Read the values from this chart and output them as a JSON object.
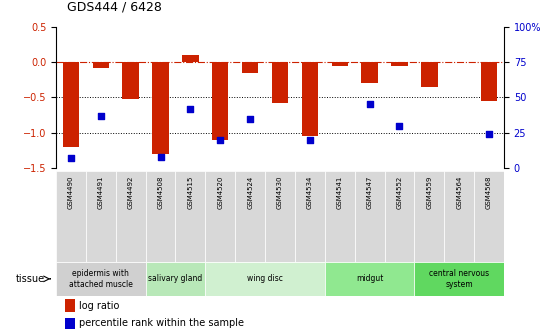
{
  "title": "GDS444 / 6428",
  "samples": [
    "GSM4490",
    "GSM4491",
    "GSM4492",
    "GSM4508",
    "GSM4515",
    "GSM4520",
    "GSM4524",
    "GSM4530",
    "GSM4534",
    "GSM4541",
    "GSM4547",
    "GSM4552",
    "GSM4559",
    "GSM4564",
    "GSM4568"
  ],
  "log_ratio": [
    -1.2,
    -0.08,
    -0.52,
    -1.3,
    0.1,
    -1.1,
    -0.15,
    -0.58,
    -1.05,
    -0.05,
    -0.3,
    -0.05,
    -0.35,
    0.0,
    -0.55
  ],
  "percentile": [
    7,
    37,
    null,
    8,
    42,
    20,
    35,
    null,
    20,
    null,
    45,
    30,
    null,
    null,
    24
  ],
  "tissue_groups": [
    {
      "label": "epidermis with\nattached muscle",
      "start": 0,
      "end": 2,
      "color": "#d0d0d0"
    },
    {
      "label": "salivary gland",
      "start": 3,
      "end": 4,
      "color": "#b8e8b8"
    },
    {
      "label": "wing disc",
      "start": 5,
      "end": 8,
      "color": "#d0f0d0"
    },
    {
      "label": "midgut",
      "start": 9,
      "end": 11,
      "color": "#90e890"
    },
    {
      "label": "central nervous\nsystem",
      "start": 12,
      "end": 14,
      "color": "#60d860"
    }
  ],
  "bar_color": "#cc2200",
  "dot_color": "#0000cc",
  "ylim_left": [
    -1.5,
    0.5
  ],
  "ylim_right": [
    0,
    100
  ],
  "yticks_left": [
    0.5,
    0,
    -0.5,
    -1.0,
    -1.5
  ],
  "yticks_right": [
    100,
    75,
    50,
    25,
    0
  ],
  "ref_line_y": 0,
  "dotted_lines": [
    -0.5,
    -1.0
  ],
  "legend_log_ratio": "log ratio",
  "legend_percentile": "percentile rank within the sample",
  "tissue_label": "tissue"
}
